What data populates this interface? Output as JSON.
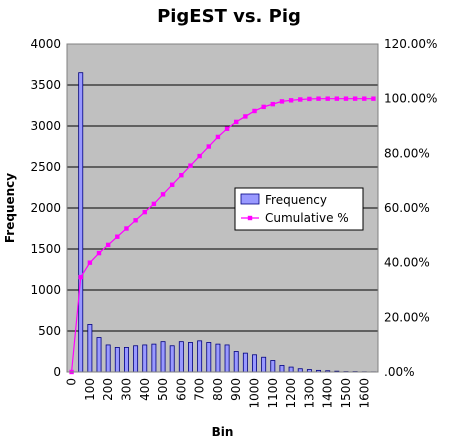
{
  "chart_data": {
    "type": "bar",
    "title": "PigEST vs. Pig",
    "xlabel": "Bin",
    "ylabel": "Frequency",
    "categories": [
      "0",
      "50",
      "100",
      "150",
      "200",
      "250",
      "300",
      "350",
      "400",
      "450",
      "500",
      "550",
      "600",
      "650",
      "700",
      "750",
      "800",
      "850",
      "900",
      "950",
      "1000",
      "1050",
      "1100",
      "1150",
      "1200",
      "1250",
      "1300",
      "1350",
      "1400",
      "1450",
      "1500",
      "1550",
      "1600",
      "1650"
    ],
    "x_tick_labels": [
      "0",
      "100",
      "200",
      "300",
      "400",
      "500",
      "600",
      "700",
      "800",
      "900",
      "1000",
      "1100",
      "1200",
      "1300",
      "1400",
      "1500",
      "1600"
    ],
    "ylim": [
      0,
      4000
    ],
    "y_ticks": [
      "0",
      "500",
      "1000",
      "1500",
      "2000",
      "2500",
      "3000",
      "3500",
      "4000"
    ],
    "y2lim": [
      0,
      1.2
    ],
    "y2_ticks": [
      ".00%",
      "20.00%",
      "40.00%",
      "60.00%",
      "80.00%",
      "100.00%",
      "120.00%"
    ],
    "series": [
      {
        "name": "Frequency",
        "kind": "bar",
        "values": [
          0,
          3650,
          580,
          420,
          330,
          300,
          300,
          320,
          330,
          340,
          370,
          320,
          370,
          360,
          380,
          360,
          340,
          330,
          250,
          230,
          210,
          180,
          140,
          80,
          60,
          40,
          30,
          20,
          15,
          10,
          5,
          5,
          3,
          2
        ]
      },
      {
        "name": "Cumulative %",
        "kind": "line",
        "axis": "right",
        "values": [
          0,
          0.347,
          0.4,
          0.435,
          0.465,
          0.495,
          0.525,
          0.555,
          0.585,
          0.615,
          0.65,
          0.685,
          0.72,
          0.755,
          0.79,
          0.825,
          0.86,
          0.89,
          0.915,
          0.935,
          0.955,
          0.97,
          0.98,
          0.99,
          0.994,
          0.997,
          0.999,
          1.0,
          1.0,
          1.0,
          1.0,
          1.0,
          1.0,
          1.0
        ]
      }
    ],
    "legend_position": "right",
    "grid": true,
    "colors": {
      "plot_background": "#c0c0c0",
      "bar_fill": "#9999ff",
      "bar_stroke": "#000080",
      "line": "#ff00ff",
      "gridline": "#000000"
    }
  }
}
